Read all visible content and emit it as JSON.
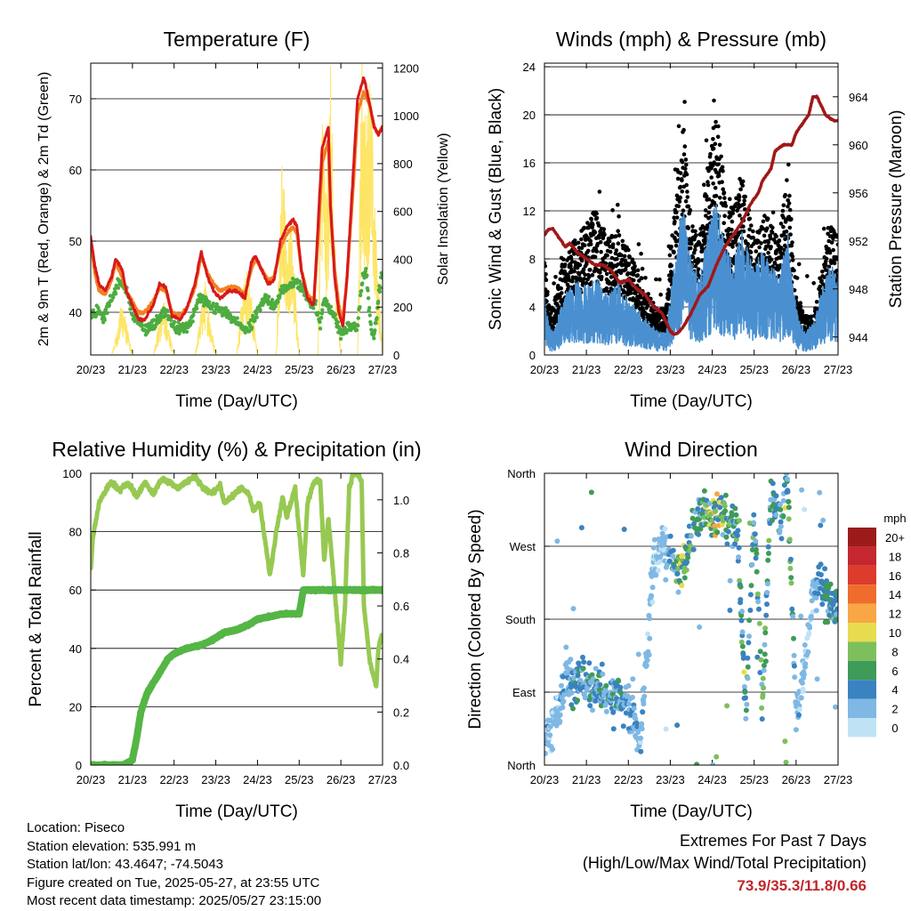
{
  "info": {
    "location": "Location: Piseco",
    "elevation": "Station elevation: 535.991 m",
    "latlon": "Station lat/lon: 43.4647; -74.5043",
    "created": "Figure created on Tue, 2025-05-27, at 23:55 UTC",
    "recent": "Most recent data timestamp: 2025/05/27 23:15:00"
  },
  "extremes": {
    "line1": "Extremes For Past 7 Days",
    "line2": "(High/Low/Max Wind/Total Precipitation)",
    "values": "73.9/35.3/11.8/0.66"
  },
  "colors": {
    "temp_2m": "#d7191c",
    "temp_9m": "#f57f20",
    "dewpoint": "#4dac40",
    "solar": "#fde567",
    "wind_sonic": "#4a90d0",
    "gust": "#000000",
    "pressure": "#a01818",
    "rh": "#97c952",
    "precip": "#55b545"
  },
  "chart_data": [
    {
      "type": "line",
      "title": "Temperature (F)",
      "xlabel": "Time (Day/UTC)",
      "ylabel": "2m & 9m T (Red, Orange) & 2m Td (Green)",
      "y2label": "Solar Insolation (Yellow)",
      "x_ticks": [
        "20/23",
        "21/23",
        "22/23",
        "23/23",
        "24/23",
        "25/23",
        "26/23",
        "27/23"
      ],
      "xlim": [
        0,
        7
      ],
      "ylim": [
        34,
        75
      ],
      "y_ticks": [
        40,
        50,
        60,
        70
      ],
      "y2lim": [
        0,
        1220
      ],
      "y2_ticks": [
        0,
        200,
        400,
        600,
        800,
        1000,
        1200
      ],
      "grid": "horizontal",
      "series": [
        {
          "name": "2m T",
          "axis": "left",
          "x": [
            0,
            0.1,
            0.2,
            0.35,
            0.5,
            0.6,
            0.75,
            0.85,
            1.0,
            1.15,
            1.3,
            1.5,
            1.65,
            1.8,
            1.95,
            2.15,
            2.3,
            2.5,
            2.65,
            2.8,
            2.95,
            3.1,
            3.3,
            3.5,
            3.7,
            3.85,
            3.95,
            4.1,
            4.25,
            4.4,
            4.55,
            4.7,
            4.85,
            4.95,
            5.05,
            5.2,
            5.35,
            5.45,
            5.55,
            5.7,
            5.75,
            5.85,
            5.95,
            6.05,
            6.15,
            6.3,
            6.4,
            6.55,
            6.7,
            6.8,
            6.9,
            7.0
          ],
          "y": [
            50.5,
            46.5,
            44,
            43,
            45,
            47.5,
            46,
            43,
            41,
            39,
            39,
            41,
            44,
            43.5,
            39.5,
            39,
            40.5,
            44,
            48.5,
            45,
            43,
            42,
            43,
            43,
            42,
            47,
            48,
            46,
            44,
            44.5,
            50,
            52,
            53,
            52,
            46,
            42,
            41,
            52,
            63,
            66,
            55,
            45,
            40,
            38,
            45,
            60,
            70,
            73,
            69,
            66,
            65,
            66
          ]
        },
        {
          "name": "9m T",
          "axis": "left",
          "x": [
            0,
            0.1,
            0.2,
            0.35,
            0.5,
            0.6,
            0.75,
            0.85,
            1.0,
            1.15,
            1.3,
            1.5,
            1.65,
            1.8,
            1.95,
            2.15,
            2.3,
            2.5,
            2.65,
            2.8,
            2.95,
            3.1,
            3.3,
            3.5,
            3.7,
            3.85,
            3.95,
            4.1,
            4.25,
            4.4,
            4.55,
            4.7,
            4.85,
            4.95,
            5.05,
            5.2,
            5.35,
            5.45,
            5.55,
            5.7,
            5.75,
            5.85,
            5.95,
            6.05,
            6.15,
            6.3,
            6.4,
            6.55,
            6.7,
            6.8,
            6.9,
            7.0
          ],
          "y": [
            50,
            45.5,
            43,
            42.5,
            44.5,
            47,
            45,
            43,
            41.5,
            40,
            40,
            41.5,
            43.5,
            43,
            40,
            39.5,
            40.5,
            43.5,
            48,
            45.5,
            44,
            43,
            43.5,
            43.5,
            42.5,
            46,
            47.5,
            46,
            44.5,
            45,
            49,
            51,
            52,
            51,
            46,
            42.5,
            41.5,
            50,
            61,
            64,
            55,
            46,
            41,
            39,
            45,
            58,
            68,
            71,
            69,
            66,
            65,
            66
          ]
        },
        {
          "name": "2m Td",
          "axis": "left",
          "x": [
            0,
            0.2,
            0.3,
            0.5,
            0.7,
            0.85,
            1.0,
            1.2,
            1.4,
            1.6,
            1.8,
            2.0,
            2.2,
            2.4,
            2.6,
            2.8,
            3.0,
            3.2,
            3.4,
            3.6,
            3.8,
            4.0,
            4.2,
            4.4,
            4.6,
            4.8,
            5.0,
            5.2,
            5.4,
            5.5,
            5.6,
            5.8,
            6.0,
            6.2,
            6.4,
            6.5,
            6.6,
            6.7,
            6.8,
            6.9,
            7.0
          ],
          "y": [
            40,
            40,
            39,
            42,
            44.5,
            43,
            40,
            38,
            37.5,
            39,
            40,
            38,
            37.5,
            38.5,
            42,
            41,
            40.5,
            40,
            39,
            38,
            37.5,
            40,
            42,
            41,
            43,
            44,
            44,
            42,
            41,
            38,
            42,
            40,
            37,
            38,
            38,
            44,
            46,
            39,
            36,
            42,
            46
          ]
        },
        {
          "name": "Solar",
          "axis": "right",
          "x": [
            0,
            0.5,
            0.65,
            0.75,
            0.85,
            0.95,
            1.0,
            1.5,
            1.65,
            1.75,
            1.85,
            2.0,
            2.5,
            2.65,
            2.75,
            2.85,
            3.0,
            3.5,
            3.65,
            3.75,
            3.85,
            4.0,
            4.45,
            4.6,
            4.7,
            4.8,
            4.9,
            5.0,
            5.45,
            5.55,
            5.65,
            5.75,
            5.85,
            6.0,
            6.4,
            6.5,
            6.6,
            6.7,
            6.8,
            6.9,
            7.0
          ],
          "y": [
            0,
            0,
            110,
            220,
            130,
            40,
            0,
            0,
            140,
            210,
            120,
            0,
            0,
            180,
            290,
            160,
            0,
            0,
            260,
            330,
            250,
            0,
            0,
            830,
            420,
            520,
            290,
            0,
            0,
            1100,
            560,
            1120,
            460,
            0,
            0,
            1150,
            880,
            1170,
            620,
            300,
            0
          ]
        }
      ]
    },
    {
      "type": "scatter",
      "title": "Winds (mph) & Pressure (mb)",
      "xlabel": "Time (Day/UTC)",
      "ylabel": "Sonic Wind & Gust (Blue, Black)",
      "y2label": "Station Pressure (Maroon)",
      "x_ticks": [
        "20/23",
        "21/23",
        "22/23",
        "23/23",
        "24/23",
        "25/23",
        "26/23",
        "27/23"
      ],
      "xlim": [
        0,
        7
      ],
      "ylim": [
        0,
        24.3
      ],
      "y_ticks": [
        0,
        4,
        8,
        12,
        16,
        20,
        24
      ],
      "y2lim": [
        942.5,
        966.8
      ],
      "y2_ticks": [
        944,
        948,
        952,
        956,
        960,
        964
      ],
      "grid": "horizontal",
      "series": [
        {
          "name": "Sonic Wind",
          "axis": "left",
          "x": [
            0,
            0.1,
            0.2,
            0.5,
            0.8,
            1.0,
            1.2,
            1.5,
            1.7,
            2.0,
            2.2,
            2.4,
            2.7,
            2.9,
            3.1,
            3.3,
            3.5,
            3.7,
            3.9,
            4.1,
            4.3,
            4.5,
            4.7,
            5.0,
            5.2,
            5.4,
            5.6,
            5.8,
            6.0,
            6.2,
            6.4,
            6.6,
            6.8,
            7.0
          ],
          "y": [
            4,
            2,
            1.5,
            4,
            5,
            4.5,
            5,
            4,
            5,
            3.5,
            3,
            2.5,
            1.5,
            1.5,
            6,
            10,
            6,
            5,
            8,
            10,
            7,
            6,
            8,
            5.5,
            7,
            6,
            5,
            8,
            3,
            1.5,
            2,
            4,
            6,
            5
          ]
        },
        {
          "name": "Gust",
          "axis": "left",
          "x": [
            0,
            0.1,
            0.2,
            0.5,
            0.8,
            1.0,
            1.2,
            1.5,
            1.7,
            2.0,
            2.2,
            2.4,
            2.7,
            2.9,
            3.1,
            3.3,
            3.5,
            3.7,
            3.9,
            4.1,
            4.3,
            4.5,
            4.7,
            5.0,
            5.2,
            5.4,
            5.6,
            5.8,
            6.0,
            6.2,
            6.4,
            6.6,
            6.8,
            7.0
          ],
          "y": [
            8,
            4,
            3.5,
            8,
            9,
            10,
            11,
            9,
            9.5,
            8,
            7,
            5,
            3.5,
            3.5,
            12,
            18,
            10,
            9,
            14,
            19,
            13,
            11,
            14,
            9,
            11,
            10,
            9,
            14,
            5,
            3,
            3,
            6,
            10,
            9
          ]
        },
        {
          "name": "Pressure",
          "axis": "right",
          "x": [
            0,
            0.1,
            0.2,
            0.3,
            0.5,
            0.6,
            0.8,
            1.0,
            1.2,
            1.4,
            1.6,
            1.8,
            2.0,
            2.2,
            2.4,
            2.6,
            2.8,
            3.0,
            3.1,
            3.2,
            3.3,
            3.5,
            3.7,
            3.9,
            4.1,
            4.3,
            4.5,
            4.7,
            4.9,
            5.1,
            5.2,
            5.4,
            5.5,
            5.7,
            5.8,
            5.9,
            6.0,
            6.1,
            6.2,
            6.3,
            6.4,
            6.5,
            6.7,
            6.9,
            7.0
          ],
          "y": [
            952.5,
            953,
            953,
            952.5,
            951.5,
            951.8,
            951,
            950.5,
            950,
            950,
            949.5,
            948.5,
            948.8,
            948,
            947.5,
            946.5,
            946,
            944.5,
            944.2,
            944.4,
            944.8,
            946,
            947.5,
            948.2,
            950,
            951.5,
            952.5,
            953.5,
            955,
            956,
            957,
            958,
            959.5,
            960,
            960,
            960,
            961,
            961.5,
            962,
            962.5,
            964,
            964,
            962.5,
            962,
            962
          ]
        }
      ]
    },
    {
      "type": "line",
      "title": "Relative Humidity (%) & Precipitation (in)",
      "xlabel": "Time (Day/UTC)",
      "ylabel": "Percent & Total Rainfall",
      "x_ticks": [
        "20/23",
        "21/23",
        "22/23",
        "23/23",
        "24/23",
        "25/23",
        "26/23",
        "27/23"
      ],
      "xlim": [
        0,
        7
      ],
      "ylim": [
        0,
        100
      ],
      "y_ticks": [
        0,
        20,
        40,
        60,
        80,
        100
      ],
      "y2lim": [
        0,
        1.1
      ],
      "y2_ticks": [
        0.0,
        0.2,
        0.4,
        0.6,
        0.8,
        1.0
      ],
      "grid": "horizontal",
      "series": [
        {
          "name": "RH",
          "axis": "left",
          "x": [
            0,
            0.05,
            0.2,
            0.4,
            0.5,
            0.7,
            0.9,
            1.1,
            1.3,
            1.5,
            1.7,
            1.9,
            2.1,
            2.3,
            2.5,
            2.7,
            2.9,
            3.1,
            3.2,
            3.4,
            3.6,
            3.8,
            3.9,
            4.05,
            4.2,
            4.3,
            4.45,
            4.6,
            4.7,
            4.9,
            5.0,
            5.1,
            5.2,
            5.35,
            5.5,
            5.6,
            5.7,
            5.85,
            6.0,
            6.1,
            6.2,
            6.3,
            6.4,
            6.5,
            6.55,
            6.7,
            6.85,
            6.9,
            7.0
          ],
          "y": [
            67,
            78,
            90,
            95,
            97,
            94,
            97,
            92,
            97,
            93,
            98,
            97,
            95,
            97,
            99,
            95,
            93,
            96,
            90,
            92,
            95,
            93,
            87,
            90,
            75,
            65,
            80,
            92,
            85,
            95,
            80,
            65,
            90,
            97,
            98,
            70,
            85,
            60,
            35,
            55,
            95,
            100,
            100,
            97,
            55,
            35,
            27,
            40,
            45
          ]
        },
        {
          "name": "Precip",
          "axis": "right",
          "x": [
            0,
            0.8,
            1.0,
            1.1,
            1.2,
            1.35,
            1.5,
            1.7,
            1.85,
            2.0,
            2.3,
            2.6,
            2.9,
            3.2,
            3.5,
            3.8,
            4.0,
            4.3,
            4.6,
            5.0,
            5.1,
            5.5,
            6.0,
            6.5,
            7.0
          ],
          "y": [
            0.0,
            0.0,
            0.02,
            0.1,
            0.2,
            0.27,
            0.31,
            0.36,
            0.4,
            0.42,
            0.44,
            0.45,
            0.47,
            0.5,
            0.51,
            0.53,
            0.55,
            0.56,
            0.57,
            0.57,
            0.66,
            0.66,
            0.66,
            0.66,
            0.66
          ]
        }
      ]
    },
    {
      "type": "scatter",
      "title": "Wind Direction",
      "xlabel": "Time (Day/UTC)",
      "ylabel": "Direction (Colored By Speed)",
      "x_ticks": [
        "20/23",
        "21/23",
        "22/23",
        "23/23",
        "24/23",
        "25/23",
        "26/23",
        "27/23"
      ],
      "xlim": [
        0,
        7
      ],
      "ylim": [
        0,
        360
      ],
      "y_ticks": [
        "North",
        "East",
        "South",
        "West",
        "North"
      ],
      "grid": "horizontal",
      "colorbar": {
        "title": "mph",
        "labels": [
          "20+",
          "18",
          "16",
          "14",
          "12",
          "10",
          "8",
          "6",
          "4",
          "2",
          "0"
        ],
        "colors": [
          "#9b1b1b",
          "#c4272d",
          "#dd3c2c",
          "#f06c2c",
          "#f8a744",
          "#e7dc4f",
          "#7dbf5c",
          "#3e9b58",
          "#3a82c0",
          "#7fb8e4",
          "#bfe3f5"
        ]
      },
      "series": [
        {
          "name": "direction",
          "x": [
            0.1,
            0.3,
            0.5,
            0.7,
            0.9,
            1.1,
            1.3,
            1.5,
            1.7,
            1.9,
            2.1,
            2.3,
            2.6,
            2.8,
            3.0,
            3.1,
            3.2,
            3.4,
            3.6,
            3.8,
            4.0,
            4.2,
            4.4,
            4.6,
            4.8,
            5.0,
            5.2,
            5.4,
            5.6,
            5.8,
            6.0,
            6.2,
            6.4,
            6.6,
            6.8
          ],
          "y": [
            40,
            60,
            110,
            100,
            105,
            95,
            100,
            85,
            90,
            80,
            60,
            40,
            250,
            270,
            270,
            230,
            240,
            260,
            300,
            315,
            300,
            310,
            300,
            290,
            60,
            320,
            70,
            340,
            300,
            345,
            60,
            120,
            210,
            230,
            200
          ]
        }
      ]
    }
  ]
}
